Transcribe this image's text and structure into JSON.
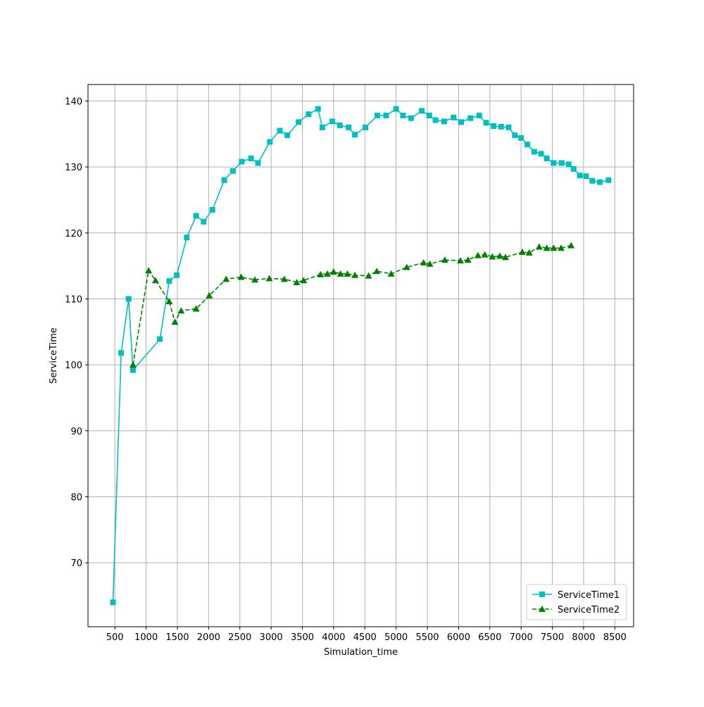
{
  "chart_data": {
    "type": "line",
    "title": "",
    "xlabel": "Simulation_time",
    "ylabel": "ServiceTime",
    "xlim": [
      70,
      8800
    ],
    "ylim": [
      60.3,
      142.5
    ],
    "xticks": [
      500,
      1000,
      1500,
      2000,
      2500,
      3000,
      3500,
      4000,
      4500,
      5000,
      5500,
      6000,
      6500,
      7000,
      7500,
      8000,
      8500
    ],
    "yticks": [
      70,
      80,
      90,
      100,
      110,
      120,
      130,
      140
    ],
    "grid": true,
    "legend_position": "lower-right",
    "series": [
      {
        "name": "ServiceTime1",
        "color": "#00bfbf",
        "marker": "square",
        "linestyle": "solid",
        "x": [
          470,
          600,
          720,
          790,
          1220,
          1370,
          1490,
          1650,
          1800,
          1920,
          2060,
          2250,
          2390,
          2530,
          2680,
          2790,
          2980,
          3140,
          3260,
          3440,
          3600,
          3750,
          3820,
          3980,
          4100,
          4240,
          4340,
          4510,
          4700,
          4840,
          5000,
          5110,
          5240,
          5410,
          5530,
          5630,
          5770,
          5920,
          6040,
          6190,
          6330,
          6440,
          6560,
          6680,
          6800,
          6900,
          7000,
          7100,
          7210,
          7320,
          7410,
          7520,
          7650,
          7760,
          7840,
          7940,
          8040,
          8140,
          8260,
          8400
        ],
        "values": [
          64.0,
          101.8,
          110.0,
          99.2,
          103.9,
          112.7,
          113.6,
          119.3,
          122.6,
          121.7,
          123.5,
          128.0,
          129.4,
          130.8,
          131.3,
          130.6,
          133.8,
          135.5,
          134.8,
          136.8,
          138.0,
          138.8,
          136.0,
          136.9,
          136.3,
          136.0,
          134.9,
          136.0,
          137.8,
          137.8,
          138.8,
          137.8,
          137.4,
          138.5,
          137.8,
          137.1,
          136.9,
          137.5,
          136.8,
          137.4,
          137.8,
          136.7,
          136.2,
          136.1,
          136.0,
          134.8,
          134.4,
          133.4,
          132.3,
          132.0,
          131.3,
          130.6,
          130.6,
          130.4,
          129.7,
          128.7,
          128.6,
          127.9,
          127.7,
          128.0
        ]
      },
      {
        "name": "ServiceTime2",
        "color": "#008000",
        "marker": "triangle",
        "linestyle": "dashed",
        "x": [
          790,
          1040,
          1150,
          1370,
          1460,
          1560,
          1800,
          2010,
          2280,
          2520,
          2740,
          2970,
          3210,
          3410,
          3520,
          3790,
          3900,
          4000,
          4110,
          4220,
          4340,
          4560,
          4690,
          4920,
          5170,
          5440,
          5540,
          5780,
          6030,
          6150,
          6310,
          6420,
          6540,
          6660,
          6750,
          7020,
          7130,
          7290,
          7410,
          7520,
          7640,
          7800
        ],
        "values": [
          100.0,
          114.3,
          112.8,
          109.6,
          106.5,
          108.2,
          108.5,
          110.5,
          113.0,
          113.3,
          112.9,
          113.1,
          113.0,
          112.5,
          112.8,
          113.7,
          113.8,
          114.1,
          113.8,
          113.8,
          113.6,
          113.5,
          114.2,
          113.8,
          114.8,
          115.5,
          115.3,
          115.9,
          115.8,
          115.9,
          116.6,
          116.7,
          116.4,
          116.5,
          116.3,
          117.1,
          117.0,
          117.9,
          117.7,
          117.7,
          117.7,
          118.1
        ]
      }
    ]
  }
}
